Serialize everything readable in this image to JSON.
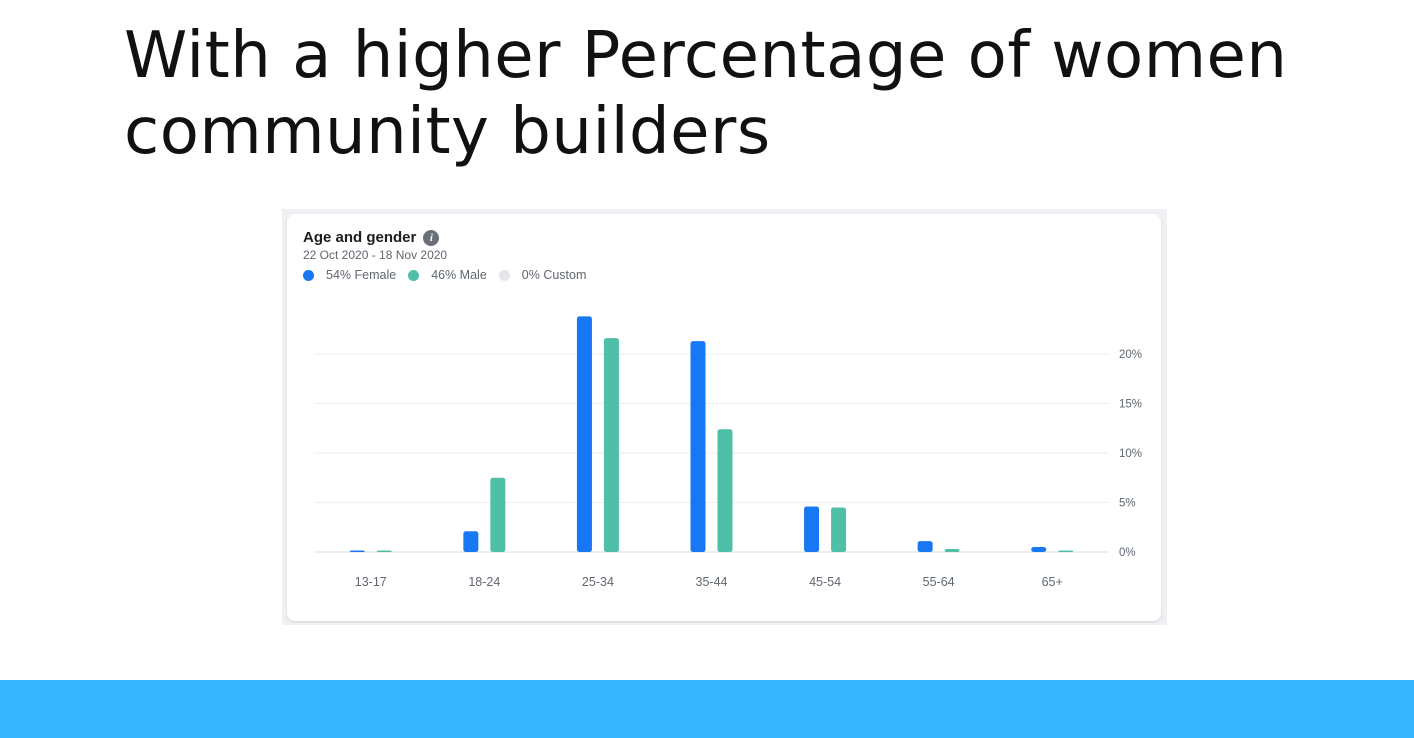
{
  "slide": {
    "title": "With a higher Percentage of women community builders"
  },
  "card": {
    "title": "Age and gender",
    "info_icon": "info-icon",
    "date_range": "22 Oct 2020 - 18 Nov 2020",
    "legend": [
      {
        "label": "54% Female",
        "color": "#1877f2"
      },
      {
        "label": "46% Male",
        "color": "#4fbfa8"
      },
      {
        "label": "0% Custom",
        "color": "#e4e6eb"
      }
    ]
  },
  "colors": {
    "female": "#1877f2",
    "male": "#4fbfa8",
    "band": "#38b6ff"
  },
  "chart_data": {
    "type": "bar",
    "title": "Age and gender",
    "subtitle": "22 Oct 2020 - 18 Nov 2020",
    "categories": [
      "13-17",
      "18-24",
      "25-34",
      "35-44",
      "45-54",
      "55-64",
      "65+"
    ],
    "series": [
      {
        "name": "54% Female",
        "values": [
          0.1,
          2.1,
          23.8,
          21.3,
          4.6,
          1.1,
          0.5
        ]
      },
      {
        "name": "46% Male",
        "values": [
          0.1,
          7.5,
          21.6,
          12.4,
          4.5,
          0.3,
          0.1
        ]
      },
      {
        "name": "0% Custom",
        "values": [
          0,
          0,
          0,
          0,
          0,
          0,
          0
        ]
      }
    ],
    "yticks": [
      0,
      5,
      10,
      15,
      20
    ],
    "ytick_labels": [
      "0%",
      "5%",
      "10%",
      "15%",
      "20%"
    ],
    "ylim": [
      0,
      25
    ],
    "y_axis_position": "right",
    "grid": true,
    "legend_position": "top-left"
  }
}
